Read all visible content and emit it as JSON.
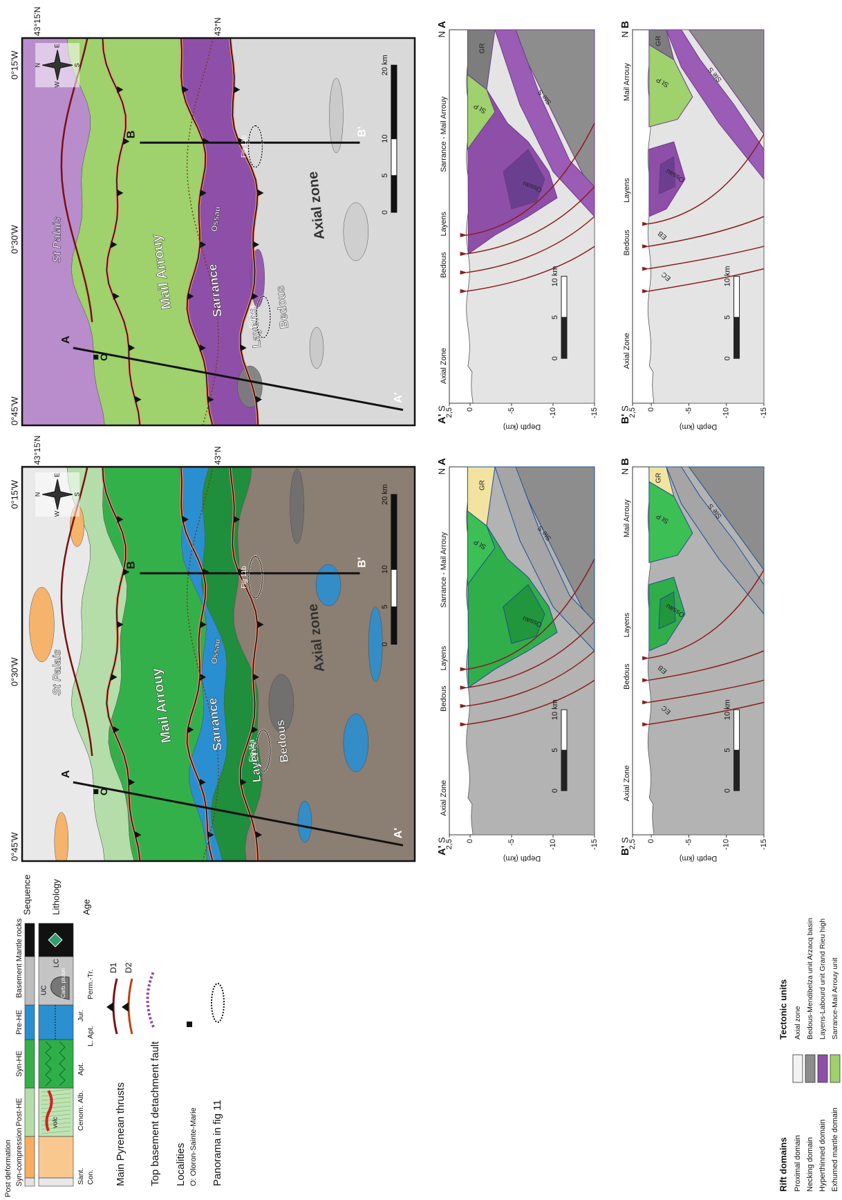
{
  "legend": {
    "sequence_header": "Sequence",
    "lithology_header": "Lithology",
    "age_header": "Age",
    "sequence": [
      "Post deformation",
      "Syn-compression",
      "Post-HE",
      "Syn-HE",
      "Pre-HE",
      "Basement",
      "Mantle rocks"
    ],
    "lithology": [
      "volc",
      "UC",
      "Carb. pluton",
      "LC"
    ],
    "ages": [
      "Sant.",
      "Con.",
      "Cenom.",
      "Alb.",
      "Apt.",
      "L. Apt.",
      "Jur.",
      "Perm.-Tr."
    ],
    "thrusts_title": "Main Pyrenean thrusts",
    "thrusts": [
      "D1",
      "D2"
    ],
    "detachment": "Top basement detachment fault",
    "localities_title": "Localities",
    "locality": "O: Oloron-Sainte-Marie",
    "panorama": "Panorama in fig 11"
  },
  "map": {
    "lat": [
      "43°15'N",
      "43°N"
    ],
    "lon": [
      "0°45'W",
      "0°30'W",
      "0°15'W"
    ],
    "compass": [
      "N",
      "E",
      "S",
      "W"
    ],
    "places": [
      "St Palais",
      "Mail Arrouy",
      "Sarrance",
      "Layens",
      "Bedous",
      "Axial zone",
      "Ossau"
    ],
    "locality": "O",
    "panoramas": [
      "Fig 11a",
      "Fig 11b"
    ],
    "section_ends": [
      "A",
      "A'",
      "B",
      "B'"
    ],
    "scale": [
      "0",
      "5",
      "10",
      "20 km"
    ]
  },
  "sections": {
    "depth_label": "Depth (km)",
    "depth_ticks": [
      "2,5",
      "0",
      "-5",
      "-10",
      "-15"
    ],
    "scale": [
      "0",
      "5",
      "10 km"
    ],
    "A": {
      "ends": [
        "A'",
        "S",
        "N",
        "A"
      ],
      "places": [
        "Axial Zone",
        "Bedous",
        "Layens",
        "Sarrance - Mail Arrouy"
      ],
      "units": [
        "St P",
        "Ste S",
        "Ossau",
        "GR"
      ]
    },
    "B": {
      "ends": [
        "B'",
        "S",
        "N",
        "B"
      ],
      "places": [
        "Axial Zone",
        "Bedous",
        "Layens",
        "Mail Arrouy"
      ],
      "units": [
        "EC",
        "EB",
        "Ossau",
        "St P",
        "Ste S",
        "GR"
      ]
    }
  },
  "rift_legend": {
    "rift_title": "Rift domains",
    "rift": [
      "Proximal domain",
      "Necking domain",
      "Hyperthinned domain",
      "Exhumed mantle domain"
    ],
    "units_title": "Tectonic units",
    "units": [
      "Axial zone",
      "Bedous-Mendibelza unit Arzacq basin",
      "Layens-Labourd unit Grand Rieu high",
      "Sarrance-Mail Arrouy unit"
    ]
  }
}
